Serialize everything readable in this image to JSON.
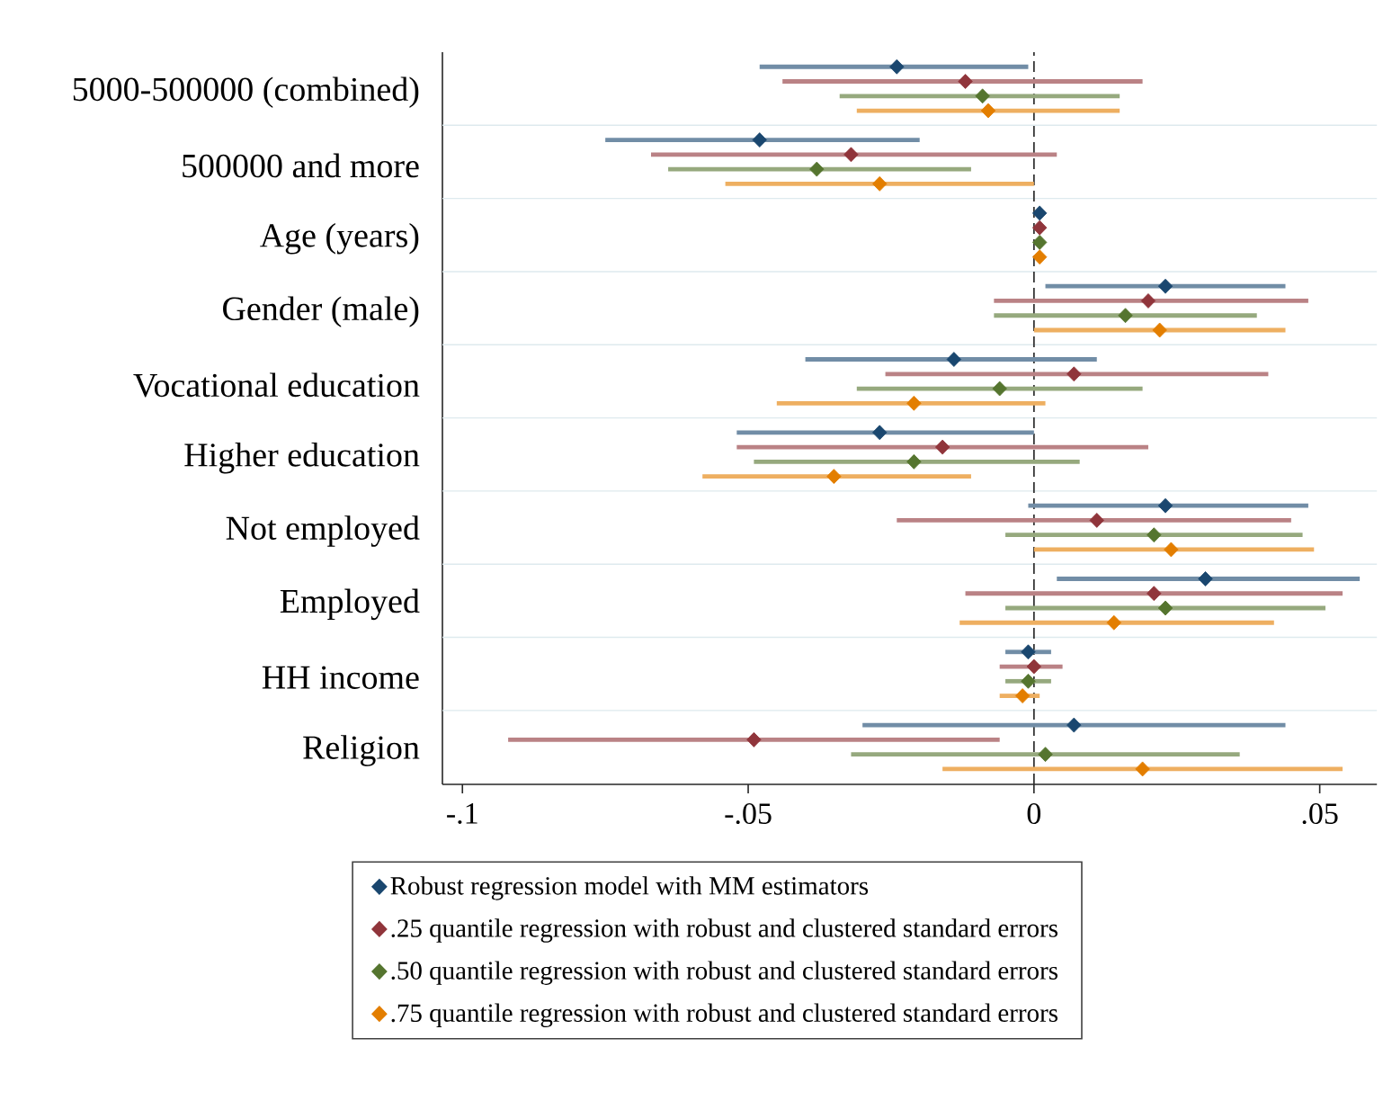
{
  "chart_data": {
    "type": "scatter",
    "orientation": "horizontal",
    "categories": [
      "5000-500000 (combined)",
      "500000 and more",
      "Age (years)",
      "Gender (male)",
      "Vocational education",
      "Higher education",
      "Not employed",
      "Employed",
      "HH income",
      "Religion"
    ],
    "series": [
      {
        "name": "Robust regression model with MM estimators",
        "color": "#1a476f",
        "values": [
          -0.024,
          -0.048,
          0.001,
          0.023,
          -0.014,
          -0.027,
          0.023,
          0.03,
          -0.001,
          0.007
        ],
        "errors": [
          [
            -0.048,
            -0.001
          ],
          [
            -0.075,
            -0.02
          ],
          null,
          [
            0.002,
            0.044
          ],
          [
            -0.04,
            0.011
          ],
          [
            -0.052,
            0.0
          ],
          [
            -0.001,
            0.048
          ],
          [
            0.004,
            0.057
          ],
          [
            -0.005,
            0.003
          ],
          [
            -0.03,
            0.044
          ]
        ]
      },
      {
        "name": ".25 quantile regression with robust and clustered standard errors",
        "color": "#90353b",
        "values": [
          -0.012,
          -0.032,
          0.001,
          0.02,
          0.007,
          -0.016,
          0.011,
          0.021,
          0.0,
          -0.049
        ],
        "errors": [
          [
            -0.044,
            0.019
          ],
          [
            -0.067,
            0.004
          ],
          null,
          [
            -0.007,
            0.048
          ],
          [
            -0.026,
            0.041
          ],
          [
            -0.052,
            0.02
          ],
          [
            -0.024,
            0.045
          ],
          [
            -0.012,
            0.054
          ],
          [
            -0.006,
            0.005
          ],
          [
            -0.092,
            -0.006
          ]
        ]
      },
      {
        "name": ".50 quantile regression with robust and clustered standard errors",
        "color": "#55752f",
        "values": [
          -0.009,
          -0.038,
          0.001,
          0.016,
          -0.006,
          -0.021,
          0.021,
          0.023,
          -0.001,
          0.002
        ],
        "errors": [
          [
            -0.034,
            0.015
          ],
          [
            -0.064,
            -0.011
          ],
          null,
          [
            -0.007,
            0.039
          ],
          [
            -0.031,
            0.019
          ],
          [
            -0.049,
            0.008
          ],
          [
            -0.005,
            0.047
          ],
          [
            -0.005,
            0.051
          ],
          [
            -0.005,
            0.003
          ],
          [
            -0.032,
            0.036
          ]
        ]
      },
      {
        "name": ".75 quantile regression with robust and clustered standard errors",
        "color": "#e37e00",
        "values": [
          -0.008,
          -0.027,
          0.001,
          0.022,
          -0.021,
          -0.035,
          0.024,
          0.014,
          -0.002,
          0.019
        ],
        "errors": [
          [
            -0.031,
            0.015
          ],
          [
            -0.054,
            0.0
          ],
          null,
          [
            0.0,
            0.044
          ],
          [
            -0.045,
            0.002
          ],
          [
            -0.058,
            -0.011
          ],
          [
            0.0,
            0.049
          ],
          [
            -0.013,
            0.042
          ],
          [
            -0.006,
            0.001
          ],
          [
            -0.016,
            0.054
          ]
        ]
      }
    ],
    "xlim": [
      -0.1035,
      0.06
    ],
    "xticks": [
      {
        "value": -0.1,
        "label": "-.1"
      },
      {
        "value": -0.05,
        "label": "-.05"
      },
      0,
      {
        "value": 0.05,
        "label": ".05"
      }
    ],
    "marker": "diamond",
    "legend": "bottom",
    "grid": "y",
    "ref_lines": [
      {
        "axis": "x",
        "value": 0,
        "line_style": "dashed",
        "color": "#333333"
      }
    ]
  }
}
